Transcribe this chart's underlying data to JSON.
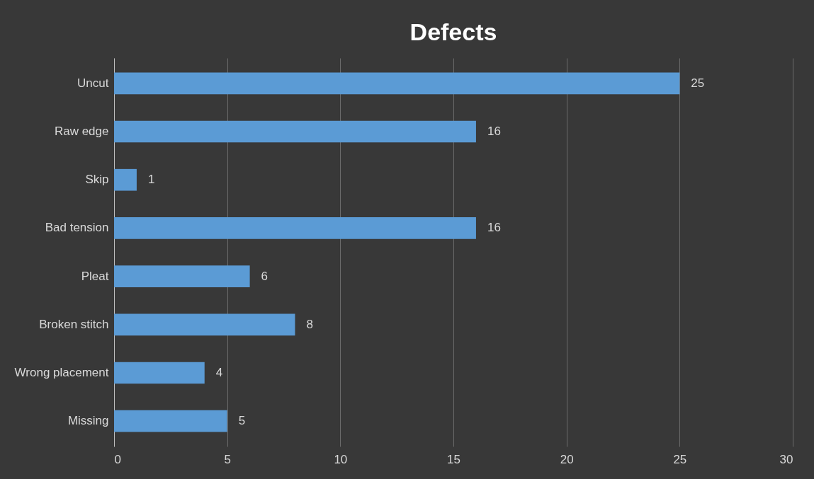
{
  "chart_data": {
    "type": "bar",
    "orientation": "horizontal",
    "title": "Defects",
    "categories": [
      "Uncut",
      "Raw edge",
      "Skip",
      "Bad tension",
      "Pleat",
      "Broken stitch",
      "Wrong placement",
      "Missing"
    ],
    "values": [
      25,
      16,
      1,
      16,
      6,
      8,
      4,
      5
    ],
    "color": "#5b9bd5",
    "xlim": [
      0,
      30
    ],
    "xticks": [
      0,
      5,
      10,
      15,
      20,
      25,
      30
    ],
    "grid": "x",
    "data_labels": true
  }
}
